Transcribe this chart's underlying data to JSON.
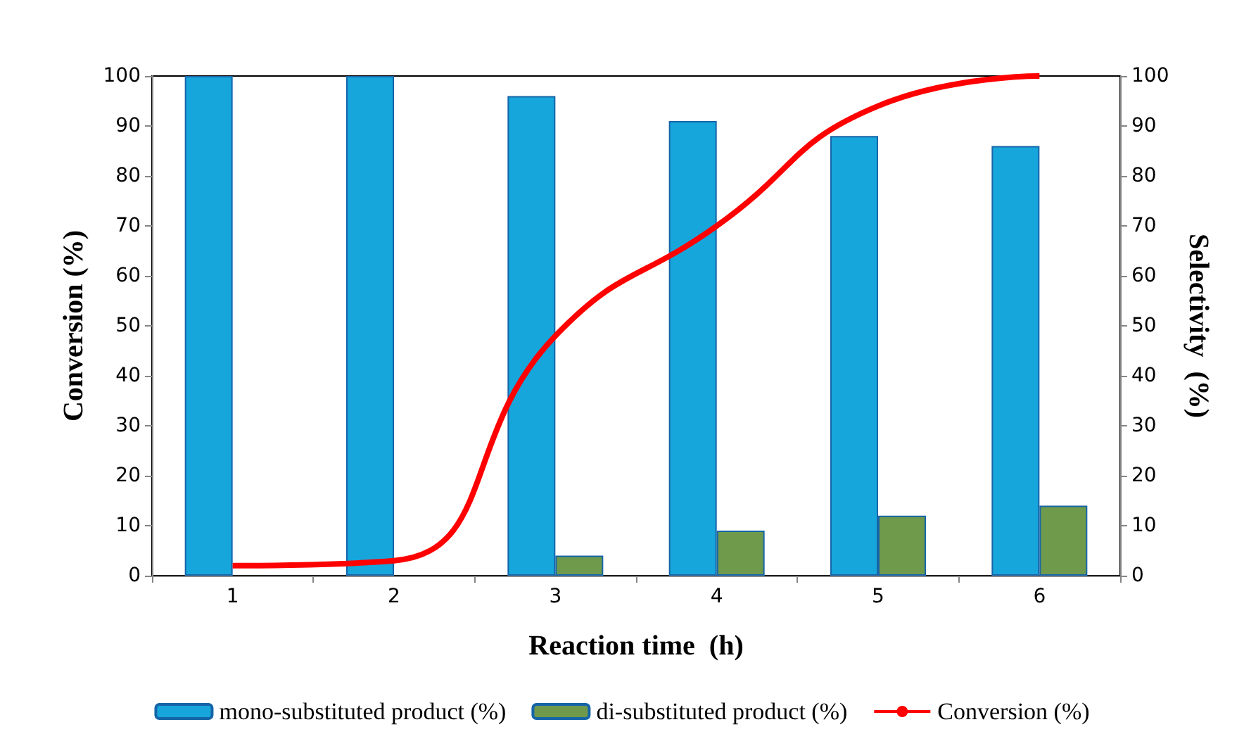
{
  "chart_data": {
    "type": "bar",
    "xlabel": "Reaction time  (h)",
    "ylabel": "Conversion (%)",
    "y2label": "Selectivity  (%)",
    "categories": [
      "1",
      "2",
      "3",
      "4",
      "5",
      "6"
    ],
    "series": [
      {
        "name": "mono-substituted product (%)",
        "color": "#17a6dc",
        "values": [
          100,
          100,
          96,
          91,
          88,
          86
        ]
      },
      {
        "name": "di-substituted product (%)",
        "color": "#6f9a4c",
        "values": [
          null,
          null,
          4,
          9,
          12,
          14
        ]
      },
      {
        "name": "Conversion (%)",
        "type": "line",
        "color": "#ff0000",
        "values": [
          2,
          3,
          48,
          70,
          94,
          100
        ],
        "marker": "none",
        "line_style": "solid"
      }
    ],
    "ylim": [
      0,
      100
    ],
    "yticks": [
      0,
      10,
      20,
      30,
      40,
      50,
      60,
      70,
      80,
      90,
      100
    ],
    "y2lim": [
      0,
      100
    ],
    "y2ticks": [
      0,
      10,
      20,
      30,
      40,
      50,
      60,
      70,
      80,
      90,
      100
    ],
    "grid": false,
    "legend": "bottom"
  }
}
